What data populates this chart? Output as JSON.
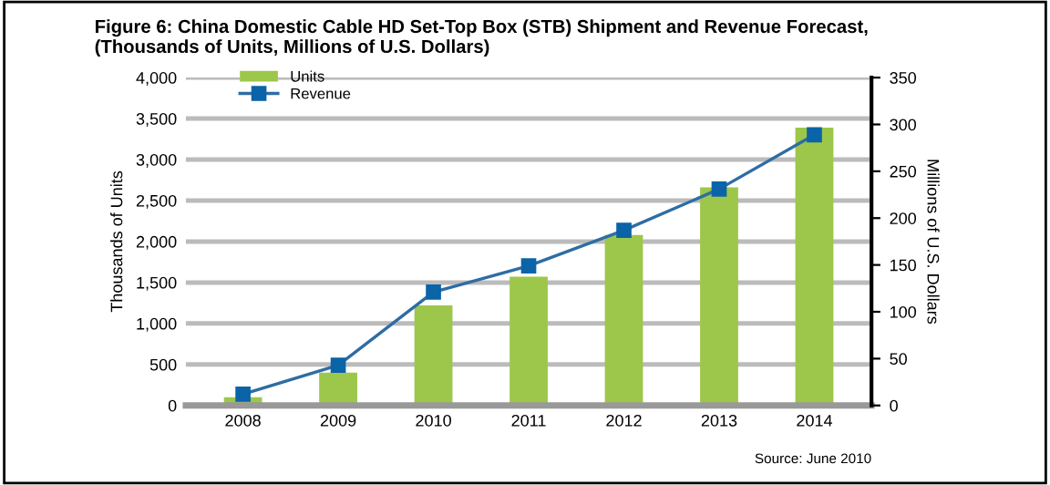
{
  "chart_data": {
    "type": "bar",
    "title": "Figure 6: China Domestic Cable HD Set-Top Box (STB) Shipment and Revenue Forecast,\n(Thousands of Units, Millions of U.S. Dollars)",
    "categories": [
      "2008",
      "2009",
      "2010",
      "2011",
      "2012",
      "2013",
      "2014"
    ],
    "series": [
      {
        "name": "Units",
        "color": "#9dc74a",
        "values": [
          100,
          400,
          1220,
          1570,
          2080,
          2660,
          3390
        ]
      },
      {
        "name": "Revenue",
        "type": "line",
        "axis": "y2",
        "color": "#2e6da4",
        "marker": "square",
        "values": [
          12,
          43,
          121,
          149,
          187,
          231,
          289
        ]
      }
    ],
    "ylabel": "Thousands of Units",
    "y2label": "Millions of U.S. Dollars",
    "ylim": [
      0,
      4000
    ],
    "yticks": [
      {
        "value": 0,
        "label": "0"
      },
      {
        "value": 500,
        "label": "500"
      },
      {
        "value": 1000,
        "label": "1,000"
      },
      {
        "value": 1500,
        "label": "1,500"
      },
      {
        "value": 2000,
        "label": "2,000"
      },
      {
        "value": 2500,
        "label": "2,500"
      },
      {
        "value": 3000,
        "label": "3,000"
      },
      {
        "value": 3500,
        "label": "3,500"
      },
      {
        "value": 4000,
        "label": "4,000"
      }
    ],
    "y2lim": [
      0,
      350
    ],
    "y2ticks": [
      0,
      50,
      100,
      150,
      200,
      250,
      300,
      350
    ],
    "grid": "y",
    "legend": "top left",
    "annotations": [
      "Source: June 2010"
    ]
  }
}
